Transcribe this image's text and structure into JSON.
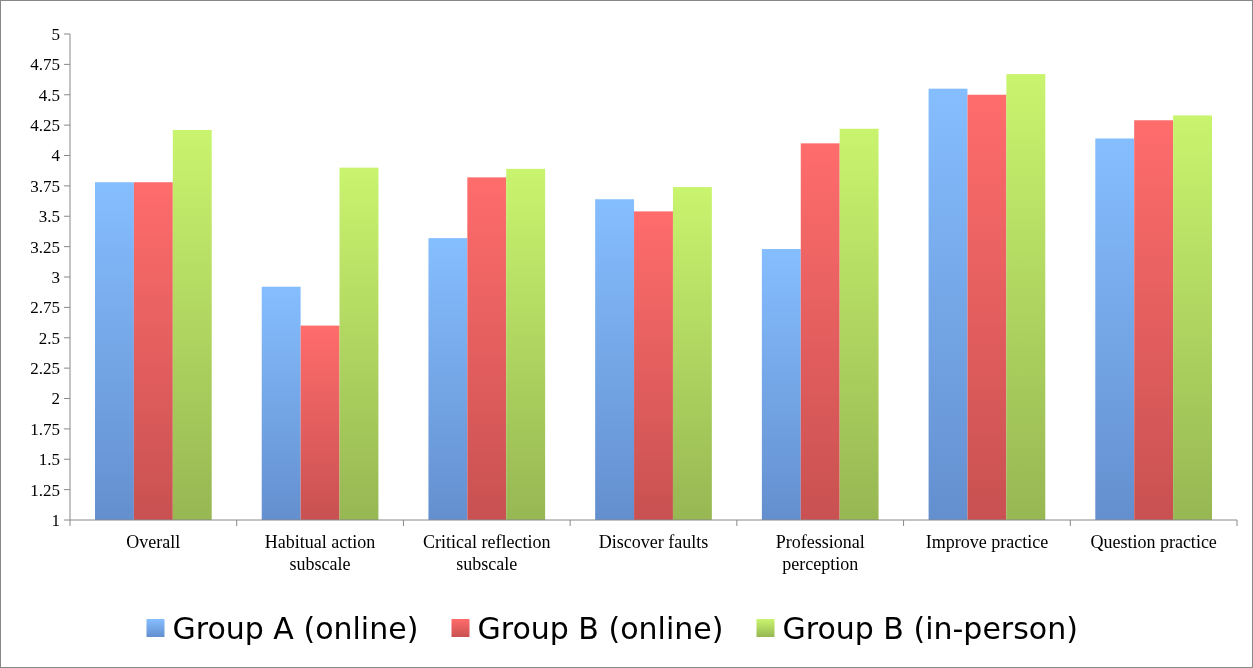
{
  "chart_data": {
    "type": "bar",
    "categories": [
      "Overall",
      "Habitual action subscale",
      "Critical reflection subscale",
      "Discover faults",
      "Professional perception",
      "Improve practice",
      "Question practice"
    ],
    "series": [
      {
        "name": "Group A (online)",
        "color": "#6f9fe6",
        "values": [
          3.78,
          2.92,
          3.32,
          3.64,
          3.23,
          4.55,
          4.14
        ]
      },
      {
        "name": "Group B (online)",
        "color": "#e05a5a",
        "values": [
          3.78,
          2.6,
          3.82,
          3.54,
          4.1,
          4.5,
          4.29
        ]
      },
      {
        "name": "Group B (in-person)",
        "color": "#a8cc5c",
        "values": [
          4.21,
          3.9,
          3.89,
          3.74,
          4.22,
          4.67,
          4.33
        ]
      }
    ],
    "ylim": [
      1,
      5
    ],
    "yticks": [
      1,
      1.25,
      1.5,
      1.75,
      2,
      2.25,
      2.5,
      2.75,
      3,
      3.25,
      3.5,
      3.75,
      4,
      4.25,
      4.5,
      4.75,
      5
    ],
    "grid": false,
    "legend": "bottom"
  }
}
